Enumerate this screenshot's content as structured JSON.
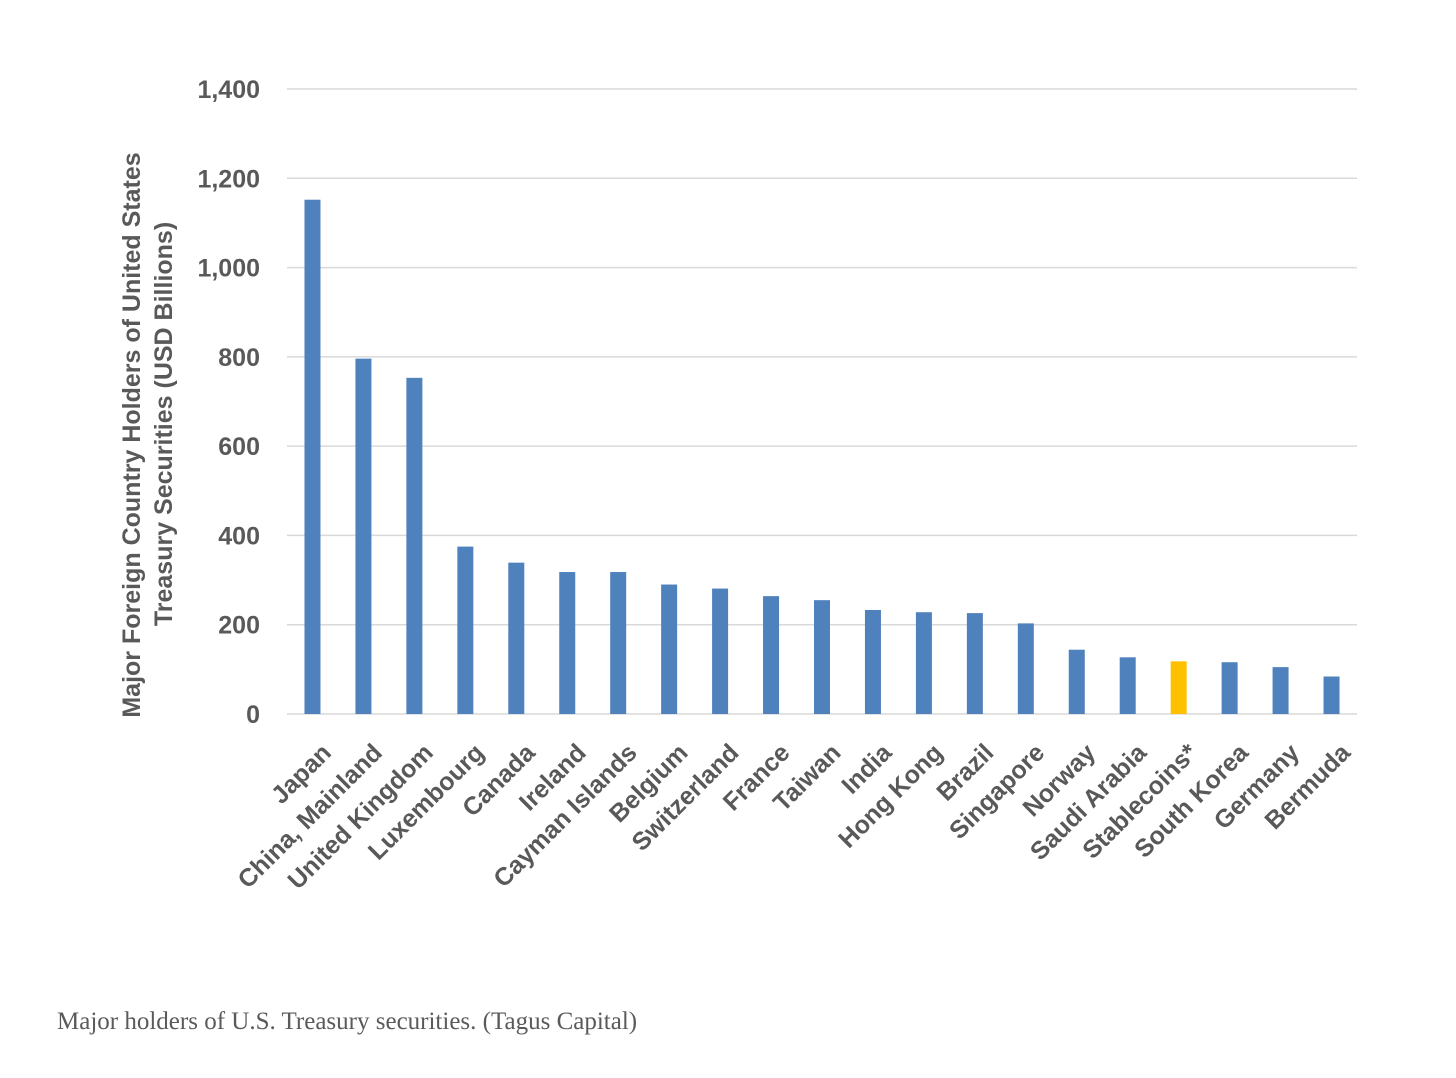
{
  "chart_data": {
    "type": "bar",
    "categories": [
      "Japan",
      "China, Mainland",
      "United Kingdom",
      "Luxembourg",
      "Canada",
      "Ireland",
      "Cayman Islands",
      "Belgium",
      "Switzerland",
      "France",
      "Taiwan",
      "India",
      "Hong Kong",
      "Brazil",
      "Singapore",
      "Norway",
      "Saudi Arabia",
      "Stablecoins*",
      "South Korea",
      "Germany",
      "Bermuda"
    ],
    "values": [
      1152,
      796,
      753,
      375,
      339,
      318,
      318,
      290,
      281,
      264,
      255,
      233,
      228,
      226,
      203,
      144,
      127,
      118,
      116,
      105,
      84
    ],
    "highlight": "Stablecoins*",
    "ylabel_line1": "Major Foreign Country Holders of United States",
    "ylabel_line2": "Treasury Securities  (USD Billions)",
    "ylim": [
      0,
      1400
    ],
    "yticks": [
      0,
      200,
      400,
      600,
      800,
      1000,
      1200,
      1400
    ],
    "ytick_labels": [
      "0",
      "200",
      "400",
      "600",
      "800",
      "1,000",
      "1,200",
      "1,400"
    ],
    "grid": true,
    "colors": {
      "bar": "#4f81bd",
      "highlight": "#ffc000",
      "grid": "#d9d9d9",
      "text": "#595959"
    }
  },
  "caption": "Major holders of U.S. Treasury securities. (Tagus Capital)"
}
